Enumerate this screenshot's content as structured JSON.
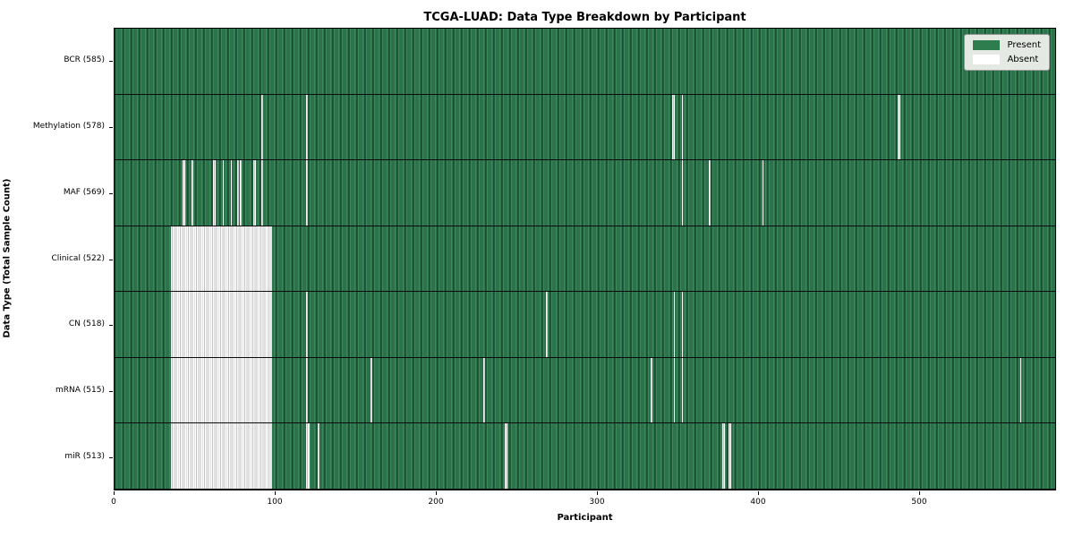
{
  "figure": {
    "title": "TCGA-LUAD: Data Type Breakdown by Participant",
    "xlabel": "Participant",
    "ylabel": "Data Type (Total Sample Count)"
  },
  "legend": {
    "present_label": "Present",
    "absent_label": "Absent"
  },
  "colors": {
    "present_green": "#2e7d4f",
    "present_green_light": "#3a8a5c",
    "present_green_dark": "#1e5c3a",
    "absent_white": "#ffffff",
    "cell_edge": "#0a0a0a",
    "legend_bg": "#e4e9e4"
  },
  "chart_data": {
    "type": "heatmap",
    "title": "TCGA-LUAD: Data Type Breakdown by Participant",
    "xlabel": "Participant",
    "ylabel": "Data Type (Total Sample Count)",
    "x_range": [
      0,
      585
    ],
    "n_participants": 585,
    "x_ticks": [
      0,
      100,
      200,
      300,
      400,
      500
    ],
    "legend_entries": [
      "Present",
      "Absent"
    ],
    "legend_position": "upper right",
    "cell_states": [
      "present",
      "absent"
    ],
    "rows": [
      {
        "label": "BCR (585)",
        "data_type": "BCR",
        "present_count": 585,
        "absent_count": 0,
        "absent_ranges": []
      },
      {
        "label": "Methylation (578)",
        "data_type": "Methylation",
        "present_count": 578,
        "absent_count": 7,
        "absent_ranges": [
          [
            91,
            91
          ],
          [
            119,
            119
          ],
          [
            346,
            347
          ],
          [
            352,
            352
          ],
          [
            486,
            487
          ]
        ]
      },
      {
        "label": "MAF (569)",
        "data_type": "MAF",
        "present_count": 569,
        "absent_count": 16,
        "absent_ranges": [
          [
            42,
            43
          ],
          [
            48,
            48
          ],
          [
            61,
            62
          ],
          [
            67,
            67
          ],
          [
            72,
            72
          ],
          [
            76,
            76
          ],
          [
            78,
            78
          ],
          [
            86,
            87
          ],
          [
            91,
            91
          ],
          [
            119,
            119
          ],
          [
            352,
            352
          ],
          [
            369,
            369
          ],
          [
            402,
            402
          ]
        ]
      },
      {
        "label": "Clinical (522)",
        "data_type": "Clinical",
        "present_count": 522,
        "absent_count": 63,
        "absent_ranges": [
          [
            35,
            97
          ]
        ]
      },
      {
        "label": "CN (518)",
        "data_type": "CN",
        "present_count": 518,
        "absent_count": 67,
        "absent_ranges": [
          [
            35,
            97
          ],
          [
            119,
            119
          ],
          [
            268,
            268
          ],
          [
            347,
            347
          ],
          [
            352,
            352
          ]
        ]
      },
      {
        "label": "mRNA (515)",
        "data_type": "mRNA",
        "present_count": 515,
        "absent_count": 70,
        "absent_ranges": [
          [
            35,
            97
          ],
          [
            119,
            119
          ],
          [
            159,
            159
          ],
          [
            229,
            229
          ],
          [
            333,
            333
          ],
          [
            347,
            347
          ],
          [
            352,
            352
          ],
          [
            562,
            562
          ]
        ]
      },
      {
        "label": "miR (513)",
        "data_type": "miR",
        "present_count": 513,
        "absent_count": 72,
        "absent_ranges": [
          [
            35,
            97
          ],
          [
            119,
            120
          ],
          [
            126,
            126
          ],
          [
            242,
            243
          ],
          [
            377,
            378
          ],
          [
            381,
            382
          ]
        ]
      }
    ]
  }
}
